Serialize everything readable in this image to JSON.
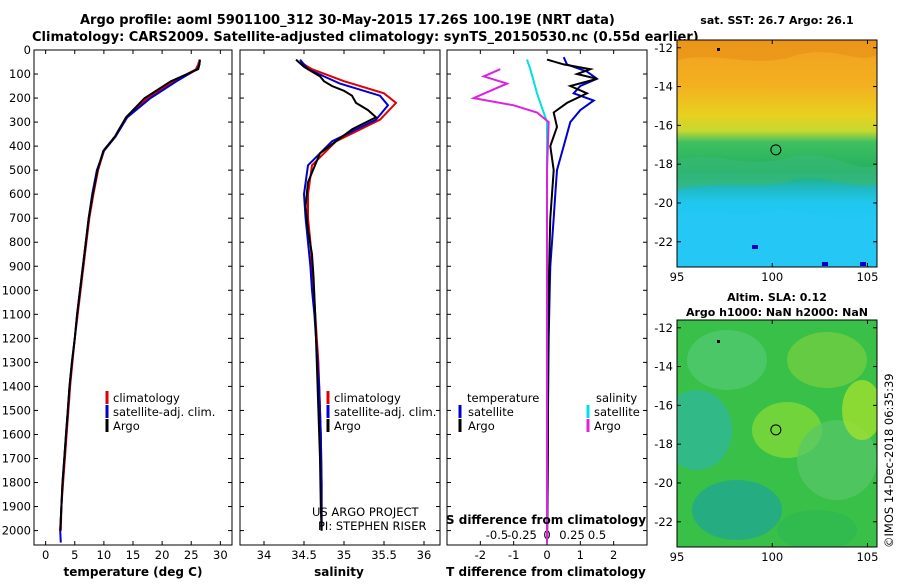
{
  "header": {
    "line1": "Argo profile: aoml 5901100_312 30-May-2015 17.26S 100.19E (NRT data)",
    "line2": "Climatology: CARS2009. Satellite-adjusted climatology: synTS_20150530.nc (0.55d earlier)"
  },
  "credits": {
    "project": "US ARGO PROJECT",
    "pi": "PI: STEPHEN RISER",
    "stamp": "©IMOS 14-Dec-2018 06:35:39"
  },
  "colors": {
    "climatology": "#e00000",
    "satellite": "#0000cc",
    "argo": "#000000",
    "sat_salinity": "#00e0e0",
    "argo_salinity": "#e020e0"
  },
  "chart_data": [
    {
      "type": "line",
      "id": "temperature",
      "xlabel": "temperature (deg C)",
      "ylabel": "",
      "xlim": [
        -2,
        32
      ],
      "ylim": [
        0,
        2060
      ],
      "xticks": [
        "0",
        "5",
        "10",
        "15",
        "20",
        "25",
        "30"
      ],
      "xtick_values": [
        0,
        5,
        10,
        15,
        20,
        25,
        30
      ],
      "yticks": [
        "0",
        "100",
        "200",
        "300",
        "400",
        "500",
        "600",
        "700",
        "800",
        "900",
        "1000",
        "1100",
        "1200",
        "1300",
        "1400",
        "1500",
        "1600",
        "1700",
        "1800",
        "1900",
        "2000"
      ],
      "legend": [
        "climatology",
        "satellite-adj. clim.",
        "Argo"
      ],
      "series": [
        {
          "name": "climatology",
          "x": [
            26.3,
            26.2,
            25.8,
            22.0,
            17.5,
            14.0,
            12.0,
            10.0,
            9.0,
            8.2,
            7.5,
            7.0,
            6.5,
            6.0,
            5.5,
            5.0,
            4.6,
            4.2,
            3.9,
            3.6,
            3.3,
            3.0,
            2.7,
            2.6
          ],
          "y": [
            50,
            60,
            80,
            130,
            200,
            280,
            360,
            420,
            500,
            600,
            700,
            800,
            900,
            1000,
            1100,
            1200,
            1300,
            1400,
            1500,
            1600,
            1700,
            1800,
            1900,
            2000
          ]
        },
        {
          "name": "satellite-adj. clim.",
          "x": [
            26.4,
            26.4,
            26.0,
            22.5,
            18.0,
            14.0,
            12.0,
            10.0,
            8.8,
            8.0,
            7.4,
            6.9,
            6.4,
            5.9,
            5.4,
            5.0,
            4.5,
            4.1,
            3.8,
            3.5,
            3.2,
            2.9,
            2.7,
            2.5,
            2.6
          ],
          "y": [
            40,
            60,
            80,
            130,
            200,
            280,
            360,
            420,
            500,
            600,
            700,
            800,
            900,
            1000,
            1100,
            1200,
            1300,
            1400,
            1500,
            1600,
            1700,
            1800,
            1900,
            2000,
            2050
          ]
        },
        {
          "name": "Argo",
          "x": [
            26.5,
            26.4,
            26.2,
            21.5,
            17.0,
            13.8,
            11.9,
            9.9,
            8.9,
            8.1,
            7.4,
            6.9,
            6.4,
            5.9,
            5.4,
            5.0,
            4.5,
            4.1,
            3.8,
            3.5,
            3.2,
            2.9,
            2.7,
            2.5
          ],
          "y": [
            40,
            60,
            80,
            130,
            200,
            280,
            360,
            420,
            500,
            600,
            700,
            800,
            900,
            1000,
            1100,
            1200,
            1300,
            1400,
            1500,
            1600,
            1700,
            1800,
            1900,
            2000
          ]
        }
      ]
    },
    {
      "type": "line",
      "id": "salinity",
      "xlabel": "salinity",
      "ylabel": "",
      "xlim": [
        33.7,
        36.2
      ],
      "ylim": [
        0,
        2060
      ],
      "xticks": [
        "34",
        "34.5",
        "35",
        "35.5",
        "36"
      ],
      "xtick_values": [
        34,
        34.5,
        35,
        35.5,
        36
      ],
      "legend": [
        "climatology",
        "satellite-adj. clim.",
        "Argo"
      ],
      "series": [
        {
          "name": "climatology",
          "x": [
            34.45,
            34.6,
            35.0,
            35.5,
            35.65,
            35.45,
            34.9,
            34.6,
            34.55,
            34.55,
            34.58,
            34.6,
            34.62,
            34.64,
            34.66,
            34.68,
            34.69,
            34.7,
            34.71,
            34.72,
            34.72
          ],
          "y": [
            50,
            80,
            130,
            180,
            220,
            290,
            380,
            480,
            600,
            700,
            800,
            900,
            1000,
            1100,
            1200,
            1300,
            1400,
            1500,
            1600,
            1800,
            2000
          ]
        },
        {
          "name": "satellite-adj. clim.",
          "x": [
            34.45,
            34.55,
            34.95,
            35.45,
            35.55,
            35.4,
            34.85,
            34.55,
            34.5,
            34.52,
            34.55,
            34.58,
            34.6,
            34.63,
            34.65,
            34.67,
            34.69,
            34.7,
            34.71,
            34.72,
            34.72
          ],
          "y": [
            40,
            80,
            140,
            190,
            230,
            290,
            380,
            480,
            600,
            700,
            800,
            900,
            1000,
            1100,
            1200,
            1300,
            1400,
            1500,
            1600,
            1800,
            2000
          ]
        },
        {
          "name": "Argo",
          "x": [
            34.4,
            34.5,
            34.6,
            34.7,
            34.75,
            34.85,
            35.0,
            35.1,
            35.15,
            35.3,
            35.4,
            35.1,
            34.7,
            34.55,
            34.52,
            34.55,
            34.6,
            34.62,
            34.64,
            34.66,
            34.68,
            34.7,
            34.71,
            34.72
          ],
          "y": [
            40,
            70,
            90,
            110,
            130,
            150,
            170,
            190,
            220,
            250,
            280,
            330,
            430,
            550,
            650,
            750,
            850,
            950,
            1100,
            1300,
            1500,
            1700,
            1900,
            2000
          ]
        }
      ]
    },
    {
      "type": "line",
      "id": "difference",
      "xlabel": "T difference from climatology",
      "xlabel2": "S difference from climatology",
      "xlim": [
        -3,
        3
      ],
      "ylim": [
        0,
        2060
      ],
      "xticks": [
        "-2",
        "-1",
        "0",
        "1",
        "2"
      ],
      "xtick_values": [
        -2,
        -1,
        0,
        1,
        2
      ],
      "sticks": [
        "-0.5",
        "-0.25",
        "0",
        "0.25",
        "0.5"
      ],
      "stick_values": [
        -1.5,
        -0.75,
        0,
        0.75,
        1.5
      ],
      "legend_temperature_title": "temperature",
      "legend_salinity_title": "salinity",
      "legend_temperature": [
        "satellite",
        "Argo"
      ],
      "legend_salinity": [
        "satellite",
        "Argo"
      ],
      "series": [
        {
          "name": "T satellite",
          "x": [
            0.5,
            0.6,
            1.2,
            1.5,
            1.0,
            0.8,
            1.4,
            1.0,
            0.7,
            0.5,
            0.3,
            0.25,
            0.2,
            0.15,
            0.1,
            0.08,
            0.05,
            0.03,
            0.02,
            0.0
          ],
          "y": [
            30,
            60,
            90,
            120,
            150,
            180,
            210,
            250,
            300,
            400,
            500,
            600,
            700,
            800,
            900,
            1000,
            1200,
            1500,
            1800,
            2050
          ]
        },
        {
          "name": "T Argo",
          "x": [
            0.0,
            0.5,
            1.3,
            0.9,
            1.5,
            0.7,
            1.2,
            0.6,
            0.2,
            0.3,
            0.1,
            0.2,
            0.15,
            0.1,
            0.08,
            0.05,
            0.03,
            0.02,
            0.0
          ],
          "y": [
            40,
            60,
            80,
            100,
            120,
            150,
            180,
            220,
            260,
            320,
            400,
            500,
            600,
            700,
            800,
            1000,
            1300,
            1700,
            2050
          ]
        },
        {
          "name": "S satellite",
          "x": [
            -0.6,
            -0.5,
            -0.4,
            -0.3,
            -0.2,
            -0.1,
            0.0,
            0.0,
            0.0,
            0.0,
            0.0
          ],
          "y": [
            40,
            80,
            130,
            180,
            220,
            260,
            300,
            500,
            1000,
            1500,
            2050
          ]
        },
        {
          "name": "S Argo",
          "x": [
            -1.4,
            -1.9,
            -1.2,
            -1.7,
            -2.2,
            -1.0,
            -0.3,
            0.05,
            0.0,
            0.0
          ],
          "y": [
            80,
            110,
            140,
            170,
            200,
            230,
            260,
            300,
            500,
            2050
          ]
        }
      ]
    },
    {
      "type": "heatmap",
      "id": "sst_map",
      "title": "sat. SST: 26.7 Argo: 26.1",
      "xticks": [
        "95",
        "100",
        "105"
      ],
      "xtick_values": [
        95,
        100,
        105
      ],
      "yticks": [
        "-12",
        "-14",
        "-16",
        "-18",
        "-20",
        "-22"
      ],
      "ytick_values": [
        -12,
        -14,
        -16,
        -18,
        -20,
        -22
      ],
      "xlim": [
        95,
        105.5
      ],
      "ylim": [
        -23.3,
        -11.6
      ],
      "marker": {
        "lon": 100.19,
        "lat": -17.26
      }
    },
    {
      "type": "heatmap",
      "id": "sla_map",
      "title": "Altim. SLA: 0.12",
      "subtitle": "Argo h1000: NaN h2000: NaN",
      "xticks": [
        "95",
        "100",
        "105"
      ],
      "xtick_values": [
        95,
        100,
        105
      ],
      "yticks": [
        "-12",
        "-14",
        "-16",
        "-18",
        "-20",
        "-22"
      ],
      "ytick_values": [
        -12,
        -14,
        -16,
        -18,
        -20,
        -22
      ],
      "xlim": [
        95,
        105.5
      ],
      "ylim": [
        -23.3,
        -11.6
      ],
      "marker": {
        "lon": 100.19,
        "lat": -17.26
      }
    }
  ]
}
